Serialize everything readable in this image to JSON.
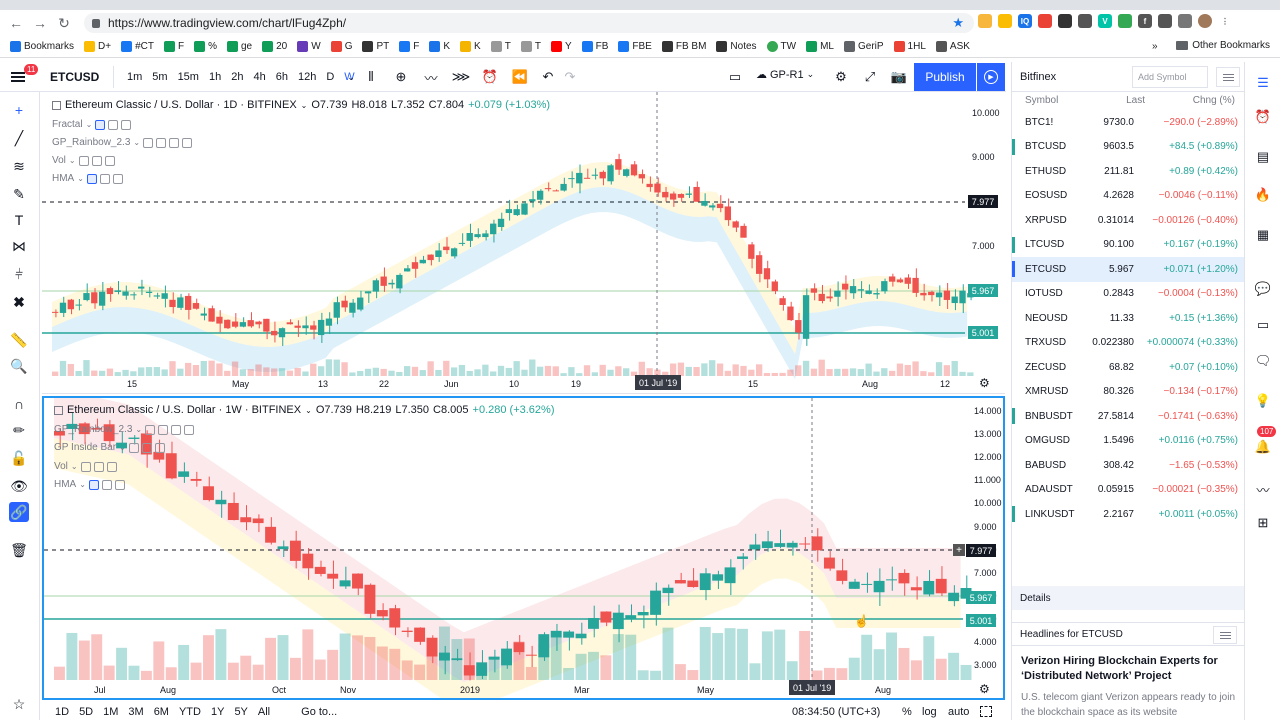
{
  "browser": {
    "url": "https://www.tradingview.com/chart/lFug4Zph/",
    "bookmarks": [
      "Bookmarks",
      "D+",
      "#CT",
      "F",
      "%",
      "ge",
      "20",
      "W",
      "G",
      "PT",
      "F",
      "K",
      "K",
      "T",
      "T",
      "Y",
      "FB",
      "FBE",
      "FB BM",
      "Notes",
      "TW",
      "ML",
      "GeriP",
      "1HL",
      "ASK"
    ],
    "other_bookmarks": "Other Bookmarks",
    "more": "»"
  },
  "toolbar": {
    "notif_count": "11",
    "symbol": "ETCUSD",
    "intervals": [
      "1m",
      "5m",
      "15m",
      "1h",
      "2h",
      "4h",
      "6h",
      "12h",
      "D",
      "W"
    ],
    "active_interval": "W",
    "template": "GP-R1",
    "publish": "Publish"
  },
  "pane1": {
    "title": "Ethereum Classic / U.S. Dollar · 1D · BITFINEX",
    "ohlc": {
      "o": "O7.739",
      "h": "H8.018",
      "l": "L7.352",
      "c": "C7.804",
      "chg": "+0.079 (+1.03%)"
    },
    "indicators": [
      "Fractal",
      "GP_Rainbow_2.3",
      "Vol",
      "HMA"
    ],
    "yaxis": [
      "10.000",
      "9.000",
      "8.000",
      "7.000",
      "6.000",
      "5.000"
    ],
    "xaxis": [
      "15",
      "May",
      "13",
      "22",
      "Jun",
      "10",
      "19",
      "15",
      "Aug",
      "12"
    ],
    "cross_date": "01 Jul '19",
    "price_tags": [
      {
        "v": "7.977",
        "c": "#131722"
      },
      {
        "v": "5.967",
        "c": "#26a69a"
      },
      {
        "v": "5.001",
        "c": "#26a69a"
      }
    ]
  },
  "pane2": {
    "title": "Ethereum Classic / U.S. Dollar · 1W · BITFINEX",
    "ohlc": {
      "o": "O7.739",
      "h": "H8.219",
      "l": "L7.350",
      "c": "C8.005",
      "chg": "+0.280 (+3.62%)"
    },
    "indicators": [
      "GP_Rainbow_2.3",
      "GP Inside Bar",
      "Vol",
      "HMA"
    ],
    "yaxis": [
      "14.000",
      "13.000",
      "12.000",
      "11.000",
      "10.000",
      "9.000",
      "8.000",
      "7.000",
      "6.000",
      "5.000",
      "4.000",
      "3.000"
    ],
    "xaxis": [
      "Jul",
      "Aug",
      "Oct",
      "Nov",
      "2019",
      "Mar",
      "May",
      "Aug"
    ],
    "cross_date": "01 Jul '19",
    "price_tags": [
      {
        "v": "7.977",
        "c": "#131722"
      },
      {
        "v": "5.967",
        "c": "#26a69a"
      },
      {
        "v": "5.001",
        "c": "#26a69a"
      }
    ]
  },
  "bottombar": {
    "ranges": [
      "1D",
      "5D",
      "1M",
      "3M",
      "6M",
      "YTD",
      "1Y",
      "5Y",
      "All"
    ],
    "goto": "Go to...",
    "time": "08:34:50 (UTC+3)",
    "pct": "%",
    "log": "log",
    "auto": "auto"
  },
  "watchlist": {
    "exchange": "Bitfinex",
    "add_symbol_placeholder": "Add Symbol",
    "cols": {
      "symbol": "Symbol",
      "last": "Last",
      "chg": "Chng (%)"
    },
    "rows": [
      {
        "sym": "BTC1!",
        "last": "9730.0",
        "chg": "−290.0 (−2.89%)",
        "dir": "neg"
      },
      {
        "sym": "BTCUSD",
        "last": "9603.5",
        "chg": "+84.5 (+0.89%)",
        "dir": "pos"
      },
      {
        "sym": "ETHUSD",
        "last": "211.81",
        "chg": "+0.89 (+0.42%)",
        "dir": "pos"
      },
      {
        "sym": "EOSUSD",
        "last": "4.2628",
        "chg": "−0.0046 (−0.11%)",
        "dir": "neg"
      },
      {
        "sym": "XRPUSD",
        "last": "0.31014",
        "chg": "−0.00126 (−0.40%)",
        "dir": "neg"
      },
      {
        "sym": "LTCUSD",
        "last": "90.100",
        "chg": "+0.167 (+0.19%)",
        "dir": "pos"
      },
      {
        "sym": "ETCUSD",
        "last": "5.967",
        "chg": "+0.071 (+1.20%)",
        "dir": "pos"
      },
      {
        "sym": "IOTUSD",
        "last": "0.2843",
        "chg": "−0.0004 (−0.13%)",
        "dir": "neg"
      },
      {
        "sym": "NEOUSD",
        "last": "11.33",
        "chg": "+0.15 (+1.36%)",
        "dir": "pos"
      },
      {
        "sym": "TRXUSD",
        "last": "0.022380",
        "chg": "+0.000074 (+0.33%)",
        "dir": "pos"
      },
      {
        "sym": "ZECUSD",
        "last": "68.82",
        "chg": "+0.07 (+0.10%)",
        "dir": "pos"
      },
      {
        "sym": "XMRUSD",
        "last": "80.326",
        "chg": "−0.134 (−0.17%)",
        "dir": "neg"
      },
      {
        "sym": "BNBUSDT",
        "last": "27.5814",
        "chg": "−0.1741 (−0.63%)",
        "dir": "neg"
      },
      {
        "sym": "OMGUSD",
        "last": "1.5496",
        "chg": "+0.0116 (+0.75%)",
        "dir": "pos"
      },
      {
        "sym": "BABUSD",
        "last": "308.42",
        "chg": "−1.65 (−0.53%)",
        "dir": "neg"
      },
      {
        "sym": "ADAUSDT",
        "last": "0.05915",
        "chg": "−0.00021 (−0.35%)",
        "dir": "neg"
      },
      {
        "sym": "LINKUSDT",
        "last": "2.2167",
        "chg": "+0.0011 (+0.05%)",
        "dir": "pos"
      }
    ],
    "details": "Details",
    "headlines": "Headlines for ETCUSD",
    "news_title": "Verizon Hiring Blockchain Experts for ‘Distributed Network’ Project",
    "news_body": "U.S. telecom giant Verizon appears ready to join the blockchain space as its website"
  },
  "farright": {
    "badge": "107"
  },
  "colors": {
    "up": "#26a69a",
    "down": "#ef5350",
    "accent": "#2962ff",
    "selected_row": "#e3effd"
  }
}
